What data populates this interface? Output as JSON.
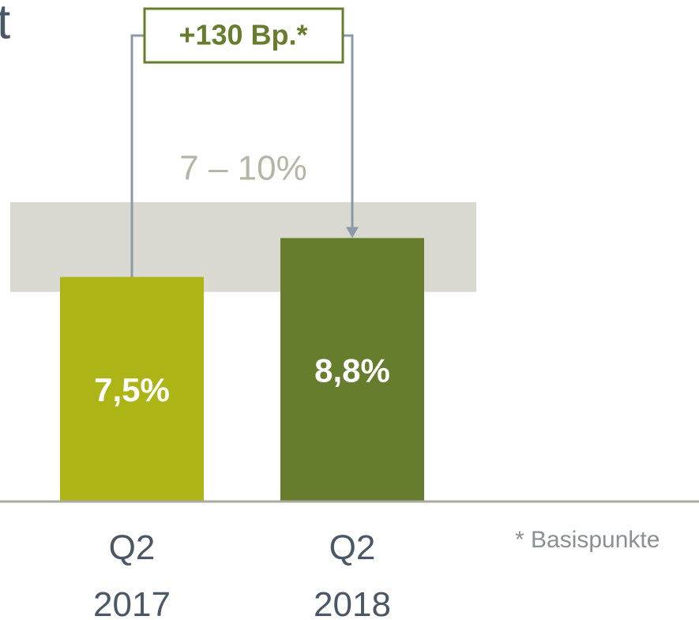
{
  "chart_data": {
    "type": "bar",
    "title": "t",
    "categories": [
      "Q2 2017",
      "Q2 2018"
    ],
    "values": [
      7.5,
      8.8
    ],
    "value_labels": [
      "7,5%",
      "8,8%"
    ],
    "colors": [
      "#acb515",
      "#667d2e"
    ],
    "ylim": [
      0,
      16.75
    ],
    "yticks": [],
    "target_range": [
      7,
      10
    ],
    "target_label": "7 – 10%",
    "annotation": "+130 Bp.*",
    "footnote": "* Basispunkte"
  }
}
